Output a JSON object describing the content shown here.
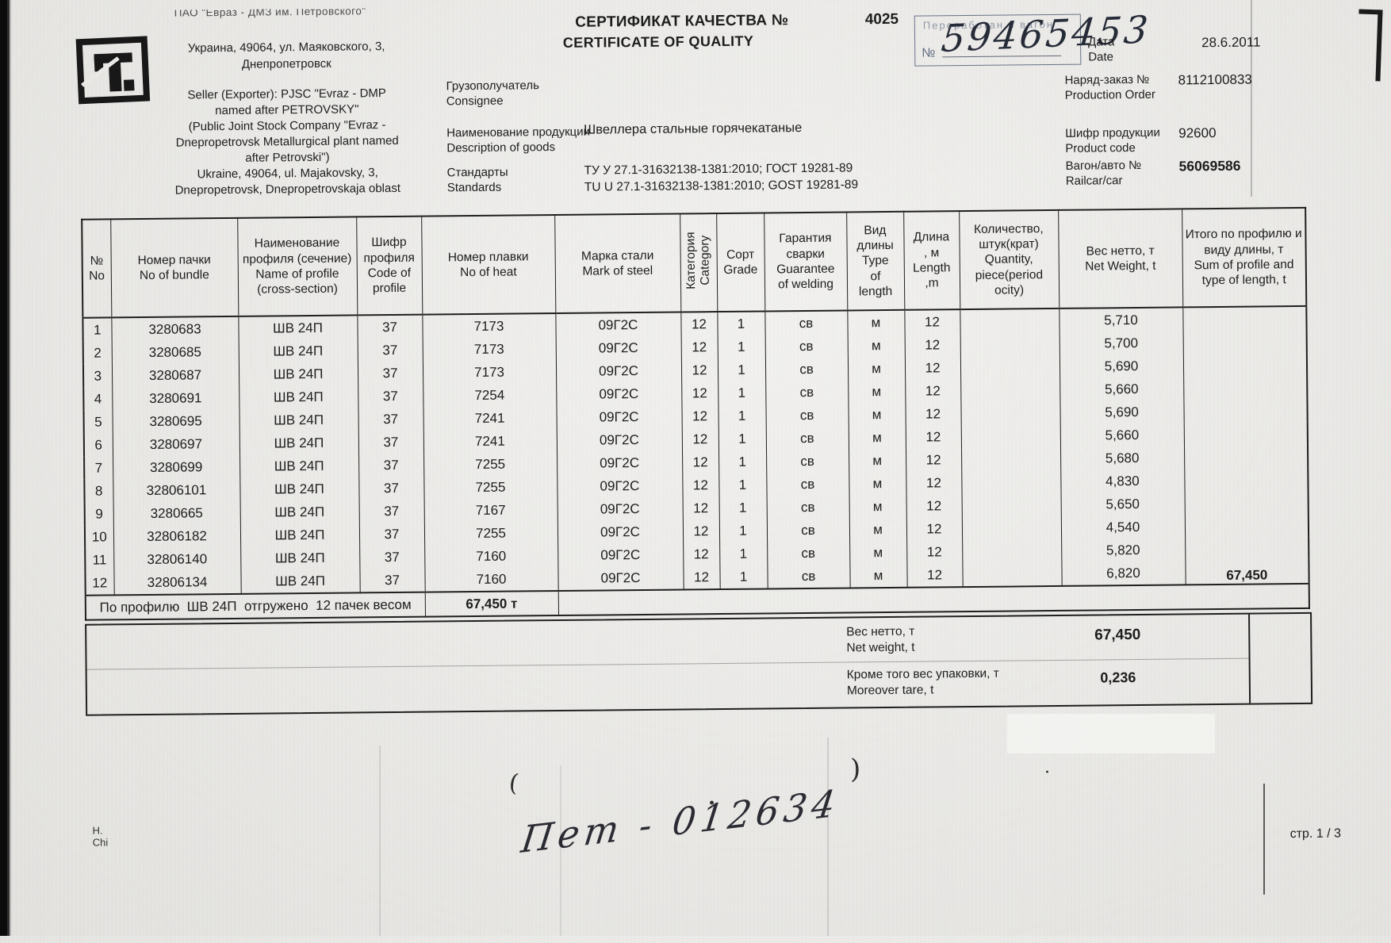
{
  "icons": {
    "company_logo": "petrovsky-plant-logo-icon"
  },
  "header": {
    "company": {
      "top_line": "ПАО \"Евраз - ДМЗ им. Петровского\"",
      "address_block": "Украина, 49064, ул. Маяковского, 3,\nДнепропетровск",
      "seller_block": "Seller (Exporter): PJSC \"Evraz - DMP\nnamed after PETROVSKY\"\n(Public Joint Stock Company \"Evraz -\nDnepropetrovsk Metallurgical plant named\nafter Petrovski\")\nUkraine, 49064, ul. Majakovsky, 3,\nDnepropetrovsk, Dnepropetrovskaja oblast"
    },
    "title": {
      "ru": "СЕРТИФИКАТ КАЧЕСТВА №",
      "en": "CERTIFICATE OF QUALITY",
      "number": "4025"
    },
    "stamp": {
      "faint_text": "Переработан в вагон",
      "number_prefix": "№",
      "handwritten_number": "59465453"
    },
    "date": {
      "label": "Дата\nDate",
      "value": "28.6.2011"
    },
    "consignee": {
      "label": "Грузополучатель\nConsignee",
      "value": ""
    },
    "goods": {
      "label": "Наименование продукции\nDescription of goods",
      "value": "Швеллера стальные горячекатаные"
    },
    "standards": {
      "label": "Стандарты\nStandards",
      "value_block": "ТУ У 27.1-31632138-1381:2010; ГОСТ 19281-89\nTU U 27.1-31632138-1381:2010; GOST 19281-89"
    },
    "production_order": {
      "label": "Наряд-заказ №\nProduction Order",
      "value": "8112100833"
    },
    "product_code": {
      "label": "Шифр продукции\nProduct code",
      "value": "92600"
    },
    "railcar": {
      "label": "Вагон/авто №\nRailcar/car",
      "value": "56069586"
    }
  },
  "table": {
    "headers": [
      "№\nNo",
      "Номер пачки\nNo of bundle",
      "Наименование\nпрофиля (сечение)\nName of profile\n(cross-section)",
      "Шифр\nпрофиля\nCode of\nprofile",
      "Номер плавки\nNo of heat",
      "Марка стали\nMark of steel",
      "Категория\nCategory",
      "Сорт\nGrade",
      "Гарантия\nсварки\nGuarantee\nof welding",
      "Вид\nдлины\nType\nof\nlength",
      "Длина\n, м\nLength\n,m",
      "Количество,\nштук(крат)\nQuantity,\npiece(period\nocity)",
      "Вес нетто, т\nNet Weight, t",
      "Итого по профилю и\nвиду длины, т\nSum of profile and\ntype of length, t"
    ],
    "rows": [
      [
        "1",
        "3280683",
        "ШВ 24П",
        "37",
        "7173",
        "09Г2С",
        "12",
        "1",
        "св",
        "м",
        "12",
        "",
        "5,710"
      ],
      [
        "2",
        "3280685",
        "ШВ 24П",
        "37",
        "7173",
        "09Г2С",
        "12",
        "1",
        "св",
        "м",
        "12",
        "",
        "5,700"
      ],
      [
        "3",
        "3280687",
        "ШВ 24П",
        "37",
        "7173",
        "09Г2С",
        "12",
        "1",
        "св",
        "м",
        "12",
        "",
        "5,690"
      ],
      [
        "4",
        "3280691",
        "ШВ 24П",
        "37",
        "7254",
        "09Г2С",
        "12",
        "1",
        "св",
        "м",
        "12",
        "",
        "5,660"
      ],
      [
        "5",
        "3280695",
        "ШВ 24П",
        "37",
        "7241",
        "09Г2С",
        "12",
        "1",
        "св",
        "м",
        "12",
        "",
        "5,690"
      ],
      [
        "6",
        "3280697",
        "ШВ 24П",
        "37",
        "7241",
        "09Г2С",
        "12",
        "1",
        "св",
        "м",
        "12",
        "",
        "5,660"
      ],
      [
        "7",
        "3280699",
        "ШВ 24П",
        "37",
        "7255",
        "09Г2С",
        "12",
        "1",
        "св",
        "м",
        "12",
        "",
        "5,680"
      ],
      [
        "8",
        "32806101",
        "ШВ 24П",
        "37",
        "7255",
        "09Г2С",
        "12",
        "1",
        "св",
        "м",
        "12",
        "",
        "4,830"
      ],
      [
        "9",
        "3280665",
        "ШВ 24П",
        "37",
        "7167",
        "09Г2С",
        "12",
        "1",
        "св",
        "м",
        "12",
        "",
        "5,650"
      ],
      [
        "10",
        "32806182",
        "ШВ 24П",
        "37",
        "7255",
        "09Г2С",
        "12",
        "1",
        "св",
        "м",
        "12",
        "",
        "4,540"
      ],
      [
        "11",
        "32806140",
        "ШВ 24П",
        "37",
        "7160",
        "09Г2С",
        "12",
        "1",
        "св",
        "м",
        "12",
        "",
        "5,820"
      ],
      [
        "12",
        "32806134",
        "ШВ 24П",
        "37",
        "7160",
        "09Г2С",
        "12",
        "1",
        "св",
        "м",
        "12",
        "",
        "6,820"
      ]
    ],
    "sum_total": "67,450",
    "summary_text": "По профилю  ШВ 24П  отгружено  12 пачек весом",
    "summary_value": "67,450 т"
  },
  "totals": {
    "net_weight": {
      "label": "Вес нетто, т\nNet weight, t",
      "value": "67,450"
    },
    "tare": {
      "label": "Кроме того вес упаковки, т\nMoreover tare, t",
      "value": "0,236"
    }
  },
  "footer": {
    "left_line1": "Н.",
    "left_line2": "Chi",
    "handwriting": "Пет - 012634",
    "page_label": "стр. 1 / 3"
  }
}
